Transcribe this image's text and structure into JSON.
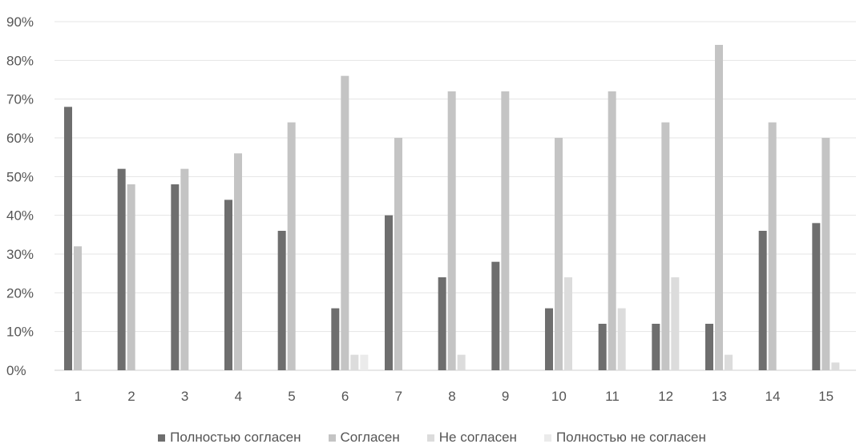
{
  "chart_data": {
    "type": "bar",
    "categories": [
      "1",
      "2",
      "3",
      "4",
      "5",
      "6",
      "7",
      "8",
      "9",
      "10",
      "11",
      "12",
      "13",
      "14",
      "15"
    ],
    "series": [
      {
        "name": "Полностью согласен",
        "values": [
          68,
          52,
          48,
          44,
          36,
          16,
          40,
          24,
          28,
          16,
          12,
          12,
          12,
          36,
          38
        ],
        "color": "#6e6e6e"
      },
      {
        "name": "Согласен",
        "values": [
          32,
          48,
          52,
          56,
          64,
          76,
          60,
          72,
          72,
          60,
          72,
          64,
          84,
          64,
          60
        ],
        "color": "#c4c4c4"
      },
      {
        "name": "Не согласен",
        "values": [
          0,
          0,
          0,
          0,
          0,
          4,
          0,
          4,
          0,
          24,
          16,
          24,
          4,
          0,
          2
        ],
        "color": "#dcdcdc"
      },
      {
        "name": "Полностью не согласен",
        "values": [
          0,
          0,
          0,
          0,
          0,
          4,
          0,
          0,
          0,
          0,
          0,
          0,
          0,
          0,
          0
        ],
        "color": "#ebebeb"
      }
    ],
    "yticks": [
      "0%",
      "10%",
      "20%",
      "30%",
      "40%",
      "50%",
      "60%",
      "70%",
      "80%",
      "90%"
    ],
    "ylim": [
      0,
      90
    ],
    "grid": true,
    "legend_position": "bottom"
  }
}
